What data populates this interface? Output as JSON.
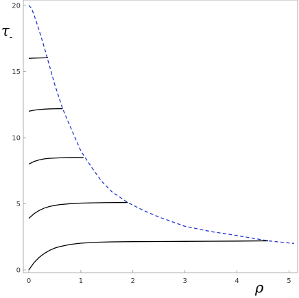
{
  "chart_data": {
    "type": "line",
    "title": "",
    "xlabel": "ρ",
    "ylabel": "τ",
    "ylabel_subscript": "-",
    "xlim": [
      0,
      5.1
    ],
    "ylim": [
      0,
      20
    ],
    "x_ticks": [
      0,
      1,
      2,
      3,
      4,
      5
    ],
    "y_ticks": [
      0,
      5,
      10,
      15,
      20
    ],
    "grid": false,
    "legend": "none",
    "colors": {
      "curves": "#000000",
      "boundary": "#2233cc",
      "frame": "#999999"
    },
    "series": [
      {
        "style": "dashed",
        "x": [
          0,
          0.05,
          0.1,
          0.2,
          0.3,
          0.4,
          0.5,
          0.65,
          0.8,
          1.0,
          1.2,
          1.4,
          1.6,
          1.9,
          2.2,
          2.5,
          3.0,
          3.5,
          4.0,
          4.6,
          5.1
        ],
        "y": [
          20,
          19.8,
          19.3,
          18.1,
          16.8,
          15.4,
          14.0,
          12.2,
          10.8,
          9.0,
          7.8,
          6.7,
          5.9,
          5.1,
          4.5,
          4.0,
          3.3,
          2.9,
          2.6,
          2.2,
          2.0
        ]
      },
      {
        "style": "solid",
        "x": [
          0,
          0.1,
          0.2,
          0.3,
          0.4,
          0.5,
          0.6,
          0.8,
          1.0,
          1.3,
          1.6,
          2.0,
          2.5,
          3.0,
          3.5,
          4.0,
          4.6
        ],
        "y": [
          0,
          0.55,
          0.95,
          1.25,
          1.48,
          1.65,
          1.77,
          1.93,
          2.02,
          2.09,
          2.12,
          2.14,
          2.15,
          2.16,
          2.17,
          2.18,
          2.2
        ]
      },
      {
        "style": "solid",
        "x": [
          0,
          0.1,
          0.2,
          0.3,
          0.4,
          0.5,
          0.6,
          0.8,
          1.0,
          1.2,
          1.5,
          1.9
        ],
        "y": [
          3.9,
          4.25,
          4.5,
          4.68,
          4.8,
          4.88,
          4.94,
          5.01,
          5.05,
          5.07,
          5.09,
          5.1
        ]
      },
      {
        "style": "solid",
        "x": [
          0,
          0.1,
          0.2,
          0.3,
          0.4,
          0.5,
          0.6,
          0.8,
          1.05
        ],
        "y": [
          8.0,
          8.2,
          8.32,
          8.4,
          8.44,
          8.46,
          8.48,
          8.5,
          8.5
        ]
      },
      {
        "style": "solid",
        "x": [
          0,
          0.1,
          0.2,
          0.3,
          0.4,
          0.5,
          0.65
        ],
        "y": [
          12.0,
          12.08,
          12.13,
          12.16,
          12.18,
          12.19,
          12.2
        ]
      },
      {
        "style": "solid",
        "x": [
          0,
          0.1,
          0.2,
          0.37
        ],
        "y": [
          16.0,
          16.02,
          16.03,
          16.05
        ]
      }
    ]
  }
}
